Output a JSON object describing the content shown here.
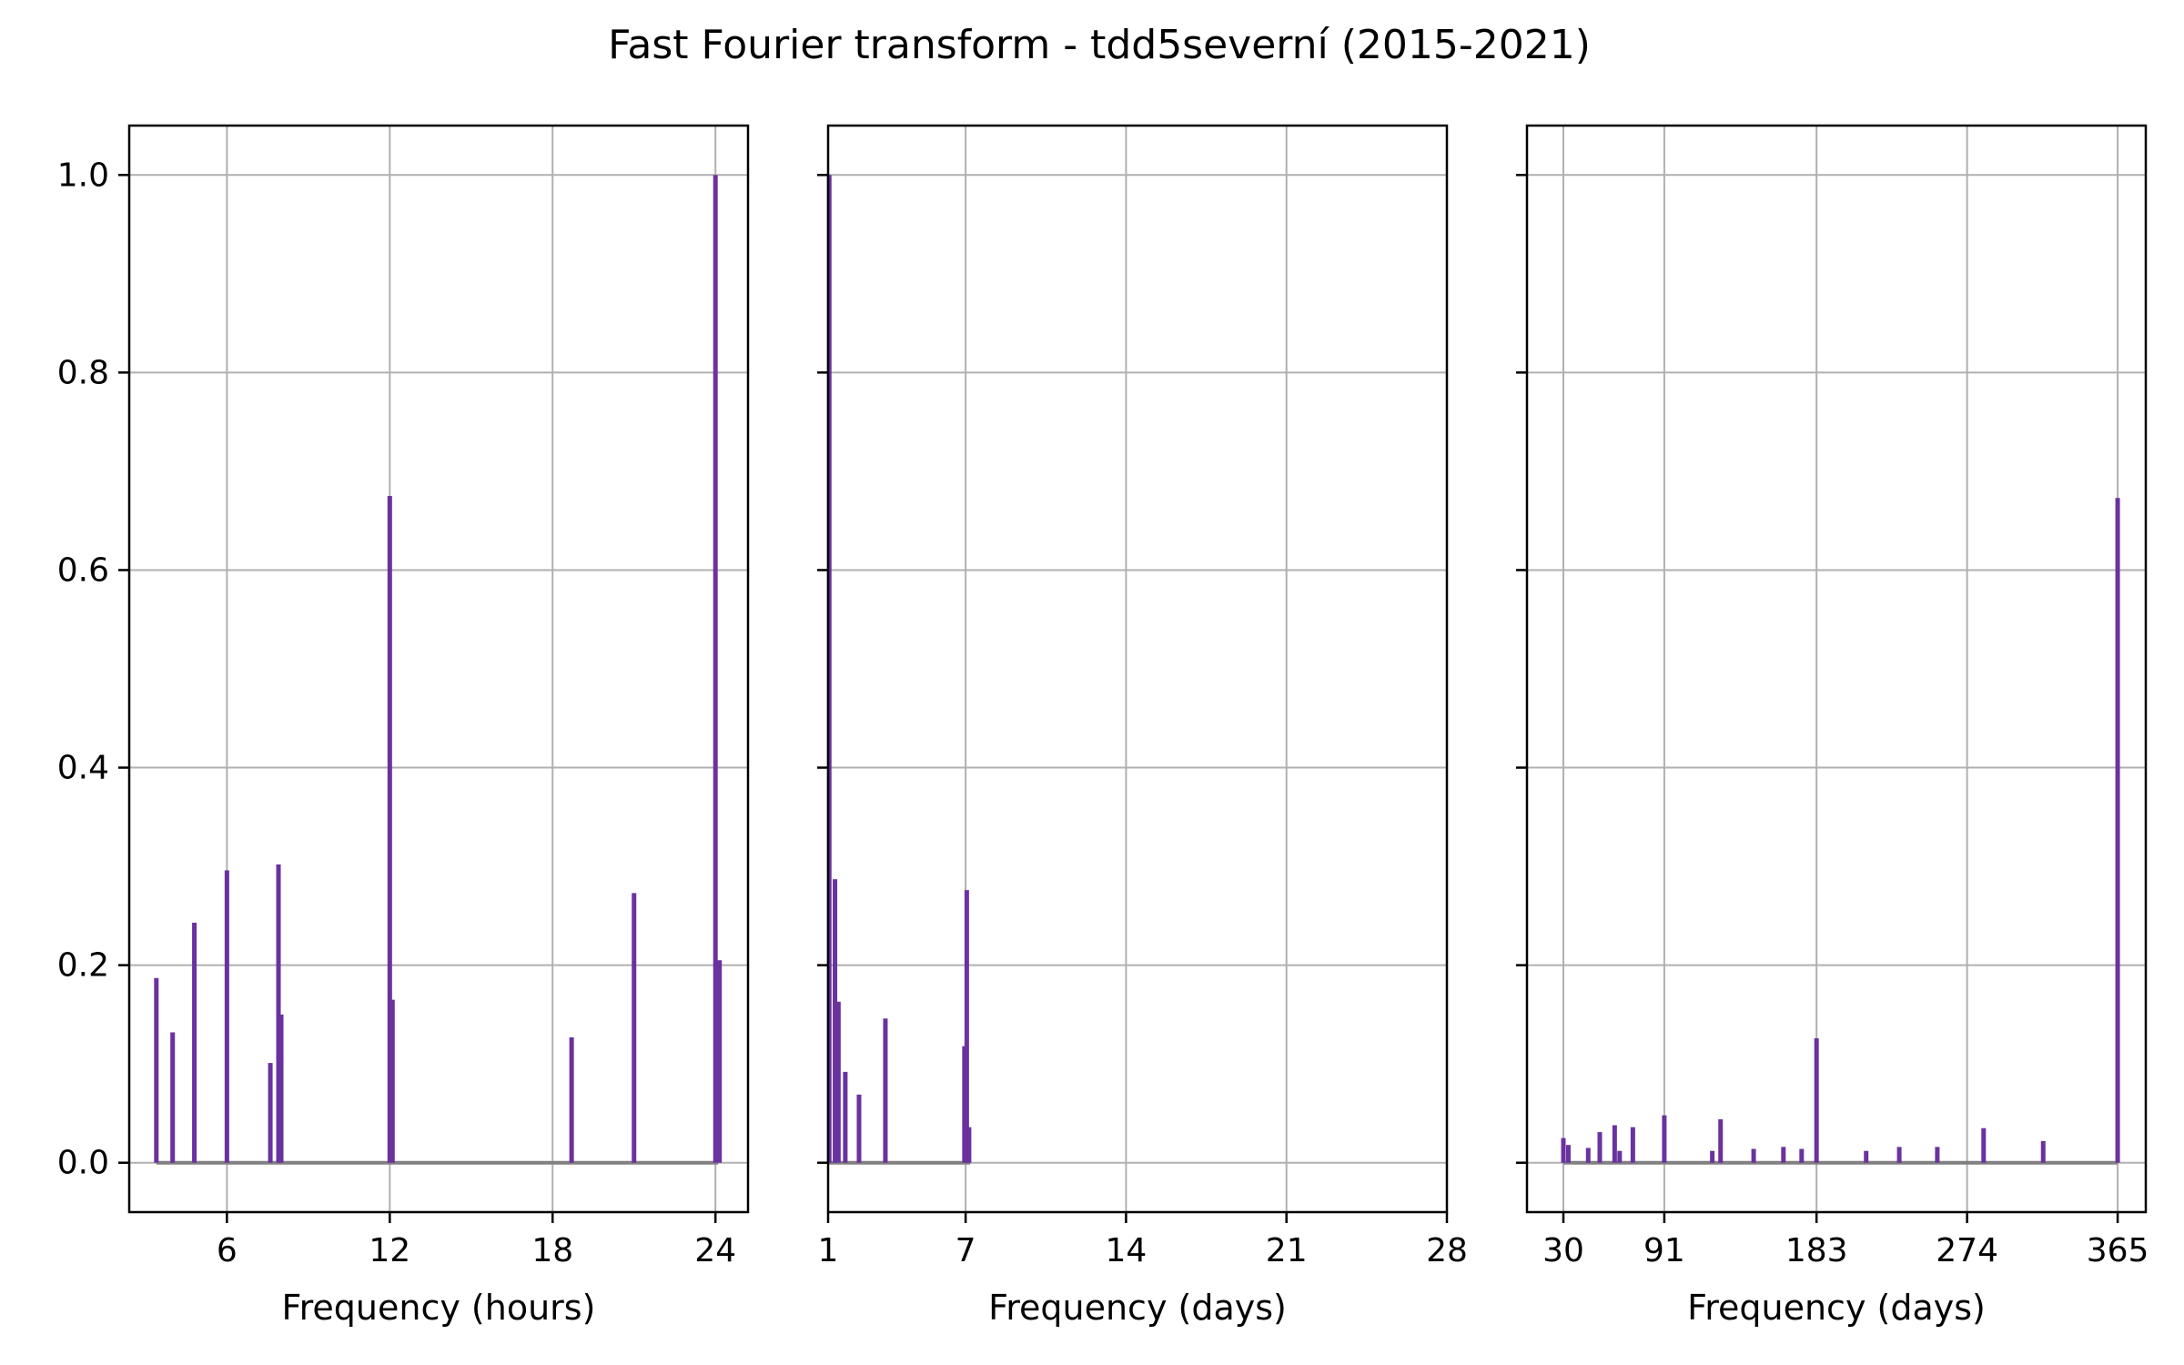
{
  "chart_data": {
    "type": "bar",
    "title": "Fast Fourier transform - tdd5severní (2015-2021)",
    "shared_y": true,
    "ylim": [
      -0.05,
      1.05
    ],
    "yticks": [
      0.0,
      0.2,
      0.4,
      0.6,
      0.8,
      1.0
    ],
    "ytick_labels": [
      "0.0",
      "0.2",
      "0.4",
      "0.6",
      "0.8",
      "1.0"
    ],
    "grid": true,
    "colors": {
      "bar": "#6a329f",
      "baseline": "#808080",
      "grid": "#b0b0b0"
    },
    "panels": [
      {
        "xlabel": "Frequency (hours)",
        "xlim": [
          2.4,
          25.2
        ],
        "xticks": [
          6,
          12,
          18,
          24
        ],
        "xtick_labels": [
          "6",
          "12",
          "18",
          "24"
        ],
        "baseline": [
          3.4,
          24.1
        ],
        "x": [
          3.4,
          4.0,
          4.8,
          6.0,
          7.6,
          7.9,
          8.0,
          12.0,
          12.1,
          18.7,
          21.0,
          24.0,
          24.15
        ],
        "values": [
          0.187,
          0.132,
          0.243,
          0.296,
          0.101,
          0.302,
          0.15,
          0.675,
          0.165,
          0.127,
          0.273,
          1.0,
          0.205
        ]
      },
      {
        "xlabel": "Frequency (days)",
        "xlim": [
          1,
          28
        ],
        "xticks": [
          1,
          7,
          14,
          21,
          28
        ],
        "xtick_labels": [
          "1",
          "7",
          "14",
          "21",
          "28"
        ],
        "baseline": [
          1.0,
          7.2
        ],
        "x": [
          1.05,
          1.3,
          1.45,
          1.75,
          2.35,
          3.5,
          6.95,
          7.05,
          7.15
        ],
        "values": [
          1.0,
          0.287,
          0.163,
          0.092,
          0.069,
          0.146,
          0.118,
          0.276,
          0.036
        ]
      },
      {
        "xlabel": "Frequency (days)",
        "xlim": [
          8,
          382
        ],
        "xticks": [
          30,
          91,
          183,
          274,
          365
        ],
        "xtick_labels": [
          "30",
          "91",
          "183",
          "274",
          "365"
        ],
        "baseline": [
          30,
          365
        ],
        "x": [
          30,
          33,
          45,
          52,
          61,
          64,
          72,
          91,
          120,
          125,
          145,
          163,
          174,
          183,
          213,
          233,
          256,
          284,
          320,
          365
        ],
        "values": [
          0.025,
          0.018,
          0.015,
          0.031,
          0.038,
          0.012,
          0.036,
          0.048,
          0.012,
          0.044,
          0.014,
          0.016,
          0.014,
          0.126,
          0.012,
          0.016,
          0.016,
          0.035,
          0.022,
          0.673
        ]
      }
    ]
  }
}
